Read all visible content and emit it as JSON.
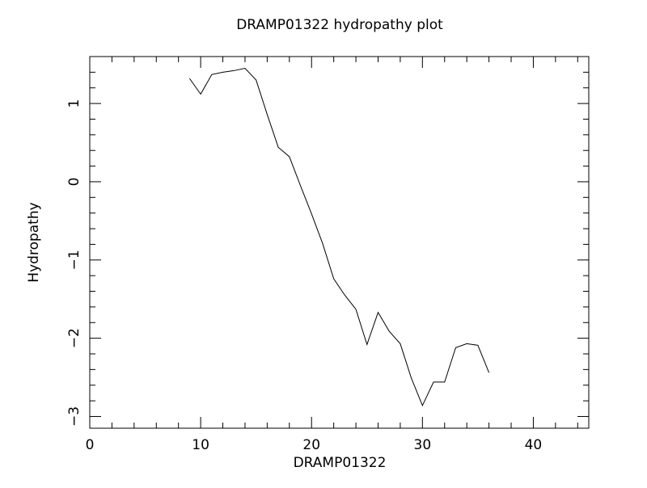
{
  "chart_data": {
    "type": "line",
    "title": "DRAMP01322 hydropathy plot",
    "x_label": "DRAMP01322",
    "y_label": "Hydropathy",
    "x": [
      9,
      10,
      11,
      12,
      13,
      14,
      15,
      16,
      17,
      18,
      19,
      20,
      21,
      22,
      23,
      24,
      25,
      26,
      27,
      28,
      29,
      30,
      31,
      32,
      33,
      34,
      35,
      36
    ],
    "values": [
      1.32,
      1.12,
      1.37,
      1.4,
      1.42,
      1.45,
      1.3,
      0.86,
      0.44,
      0.32,
      -0.05,
      -0.41,
      -0.79,
      -1.24,
      -1.45,
      -1.63,
      -2.08,
      -1.67,
      -1.91,
      -2.07,
      -2.51,
      -2.86,
      -2.56,
      -2.56,
      -2.12,
      -2.07,
      -2.09,
      -2.44
    ],
    "color": "#000000",
    "xlim": [
      0,
      45
    ],
    "ylim": [
      -3.15,
      1.6
    ],
    "xticks": [
      0,
      10,
      20,
      30,
      40
    ],
    "yticks": [
      {
        "value": -3,
        "label": "−3"
      },
      {
        "value": -2,
        "label": "−2"
      },
      {
        "value": -1,
        "label": "−1"
      },
      0,
      1
    ],
    "xminorticks": [
      2,
      4,
      6,
      8,
      12,
      14,
      16,
      18,
      22,
      24,
      26,
      28,
      32,
      34,
      36,
      38,
      42,
      44
    ],
    "yminorticks": [
      -2.8,
      -2.6,
      -2.4,
      -2.2,
      -1.8,
      -1.6,
      -1.4,
      -1.2,
      -0.8,
      -0.6,
      -0.4,
      -0.2,
      0.2,
      0.4,
      0.6,
      0.8,
      1.2,
      1.4
    ],
    "grid": false
  }
}
